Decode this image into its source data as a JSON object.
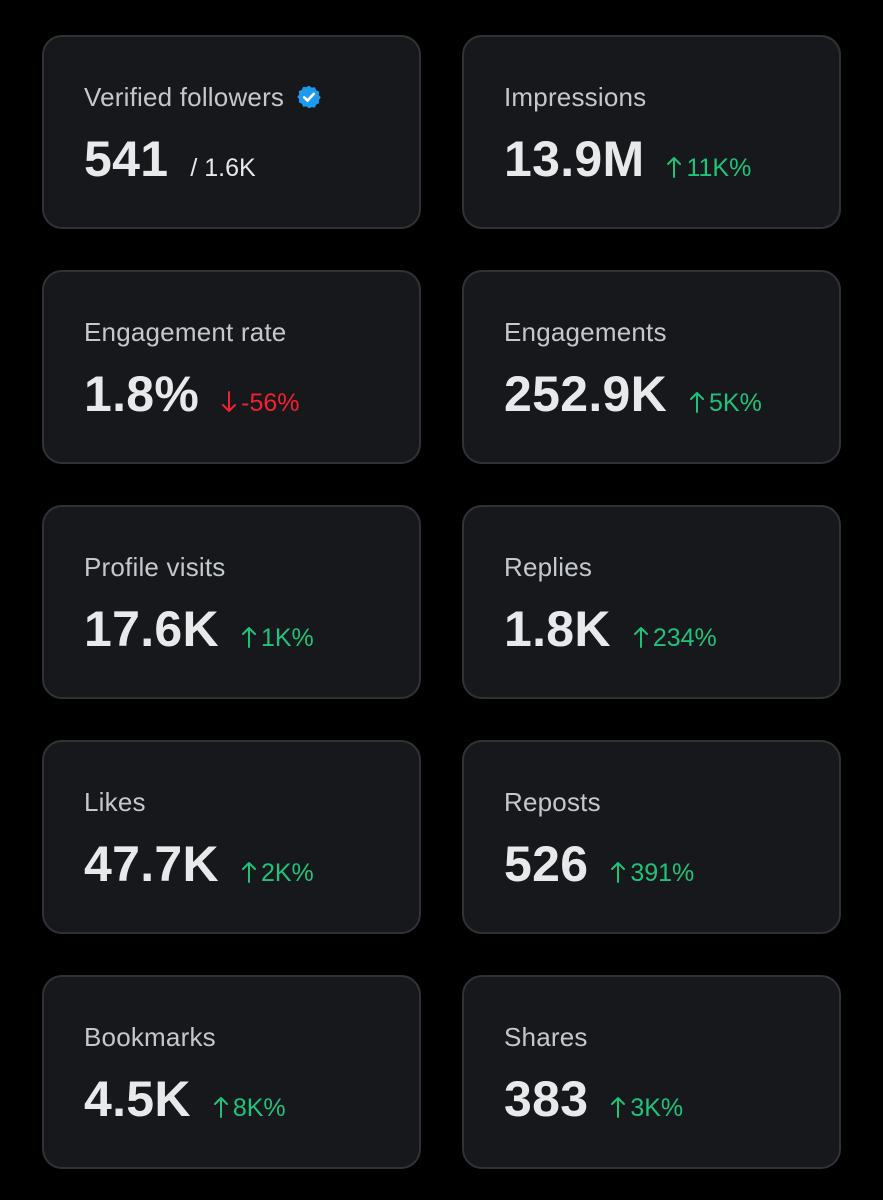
{
  "colors": {
    "background": "#000000",
    "card_background": "#16181c",
    "card_border": "#2f3336",
    "label": "#c4c8cc",
    "value": "#e7e9ea",
    "up": "#20c27a",
    "down": "#f4212e",
    "verified": "#1d9bf0"
  },
  "cards": [
    {
      "label": "Verified followers",
      "value": "541",
      "sub": "/ 1.6K"
    },
    {
      "label": "Impressions",
      "value": "13.9M",
      "change": "11K%",
      "direction": "up"
    },
    {
      "label": "Engagement rate",
      "value": "1.8%",
      "change": "-56%",
      "direction": "down"
    },
    {
      "label": "Engagements",
      "value": "252.9K",
      "change": "5K%",
      "direction": "up"
    },
    {
      "label": "Profile visits",
      "value": "17.6K",
      "change": "1K%",
      "direction": "up"
    },
    {
      "label": "Replies",
      "value": "1.8K",
      "change": "234%",
      "direction": "up"
    },
    {
      "label": "Likes",
      "value": "47.7K",
      "change": "2K%",
      "direction": "up"
    },
    {
      "label": "Reposts",
      "value": "526",
      "change": "391%",
      "direction": "up"
    },
    {
      "label": "Bookmarks",
      "value": "4.5K",
      "change": "8K%",
      "direction": "up"
    },
    {
      "label": "Shares",
      "value": "383",
      "change": "3K%",
      "direction": "up"
    }
  ]
}
